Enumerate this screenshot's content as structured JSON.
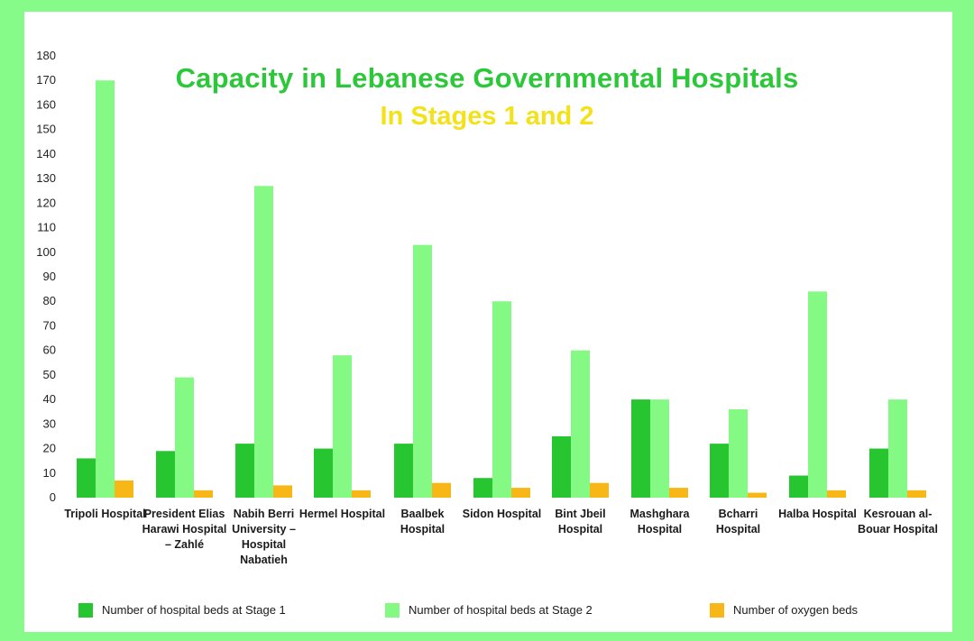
{
  "chart_data": {
    "type": "bar",
    "title": "Capacity in Lebanese Governmental Hospitals",
    "subtitle": "In Stages 1 and 2",
    "xlabel": "",
    "ylabel": "",
    "ylim": [
      0,
      180
    ],
    "yticks": [
      0,
      10,
      20,
      30,
      40,
      50,
      60,
      70,
      80,
      90,
      100,
      110,
      120,
      130,
      140,
      150,
      160,
      170,
      180
    ],
    "grid": false,
    "legend_position": "bottom",
    "categories": [
      "Tripoli Hospital",
      "President Elias Harawi Hospital – Zahlé",
      "Nabih Berri University – Hospital Nabatieh",
      "Hermel Hospital",
      "Baalbek Hospital",
      "Sidon Hospital",
      "Bint Jbeil Hospital",
      "Mashghara Hospital",
      "Bcharri Hospital",
      "Halba Hospital",
      "Kesrouan al-Bouar Hospital"
    ],
    "series": [
      {
        "name": "Number of hospital beds at Stage 1",
        "color": "#27c52f",
        "values": [
          16,
          19,
          22,
          20,
          22,
          8,
          25,
          40,
          22,
          9,
          20
        ]
      },
      {
        "name": "Number of hospital beds at Stage 2",
        "color": "#84fa84",
        "values": [
          170,
          49,
          127,
          58,
          103,
          80,
          60,
          40,
          36,
          84,
          40
        ]
      },
      {
        "name": "Number of oxygen beds",
        "color": "#f7b716",
        "values": [
          7,
          3,
          5,
          3,
          6,
          4,
          6,
          4,
          2,
          3,
          3
        ]
      }
    ]
  }
}
